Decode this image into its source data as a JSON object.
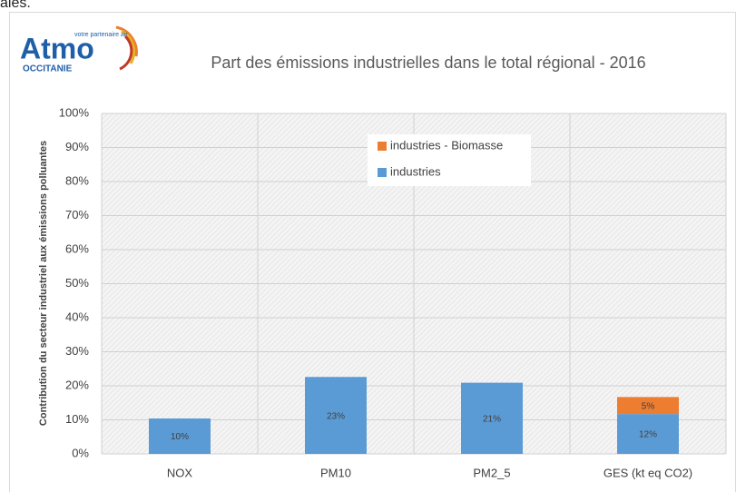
{
  "page": {
    "header_fragment": "ales."
  },
  "logo": {
    "name": "Atmo",
    "tagline": "votre partenaire air",
    "region": "OCCITANIE"
  },
  "chart_data": {
    "type": "stacked-bar",
    "title": "Part des émissions industrielles dans le total régional - 2016",
    "y_label": "Contribution du secteur industriel aux émissions polluantes",
    "categories": [
      "NOX",
      "PM10",
      "PM2_5",
      "GES (kt eq CO2)"
    ],
    "series": [
      {
        "name": "industries",
        "color": "#5b9bd5",
        "values": [
          10.4,
          22.6,
          20.9,
          11.7
        ],
        "value_labels": [
          "10%",
          "23%",
          "21%",
          "12%"
        ]
      },
      {
        "name": "industries - Biomasse",
        "color": "#ed7d31",
        "values": [
          null,
          null,
          null,
          5.0
        ],
        "value_labels": [
          null,
          null,
          null,
          "5%"
        ]
      }
    ],
    "ylim": [
      0,
      100
    ],
    "yticks": [
      {
        "value": 0,
        "label": "0%"
      },
      {
        "value": 10,
        "label": "10%"
      },
      {
        "value": 20,
        "label": "20%"
      },
      {
        "value": 30,
        "label": "30%"
      },
      {
        "value": 40,
        "label": "40%"
      },
      {
        "value": 50,
        "label": "50%"
      },
      {
        "value": 60,
        "label": "60%"
      },
      {
        "value": 70,
        "label": "70%"
      },
      {
        "value": 80,
        "label": "80%"
      },
      {
        "value": 90,
        "label": "90%"
      },
      {
        "value": 100,
        "label": "100%"
      }
    ],
    "grid": true
  }
}
